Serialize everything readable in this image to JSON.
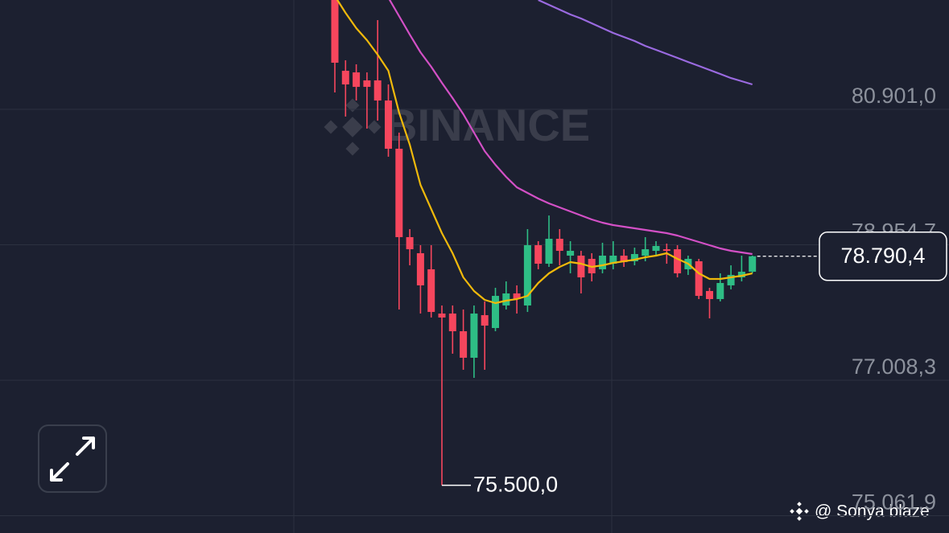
{
  "chart_data": {
    "type": "candlestick",
    "ylim": [
      74814,
      82472
    ],
    "yticks": [
      {
        "value": 80901.0,
        "label": "80.901,0"
      },
      {
        "value": 78954.7,
        "label": "78.954,7"
      },
      {
        "value": 77008.3,
        "label": "77.008,3"
      },
      {
        "value": 75061.9,
        "label": "75.061,9"
      }
    ],
    "grid": true,
    "up_color": "#2ebd85",
    "down_color": "#f6465d",
    "open": [
      82472,
      81455,
      81432,
      81317,
      81317,
      81028,
      80335,
      79065,
      78834,
      78603,
      77967,
      77967,
      77713,
      77332,
      77944,
      77759,
      78083,
      78256,
      78083,
      78949,
      78683,
      79041,
      78799,
      78799,
      78753,
      78603,
      78683,
      78799,
      78718,
      78799,
      78868,
      78891,
      78891,
      78603,
      78718,
      78291,
      78175,
      78372,
      78487,
      78568
    ],
    "high": [
      82703,
      81606,
      81548,
      81432,
      82183,
      81259,
      80566,
      79180,
      78949,
      78949,
      78083,
      78083,
      78025,
      78083,
      78141,
      78337,
      78429,
      78372,
      79180,
      79007,
      79376,
      79180,
      79007,
      78868,
      78834,
      78984,
      79007,
      78891,
      78914,
      79065,
      79007,
      78972,
      78949,
      78799,
      78753,
      78337,
      78545,
      78660,
      78799,
      78799
    ],
    "low": [
      81144,
      80797,
      81028,
      80624,
      80739,
      80220,
      78025,
      78660,
      77967,
      77910,
      75500,
      77390,
      77159,
      77043,
      77159,
      77713,
      78025,
      77967,
      77990,
      78603,
      78637,
      78660,
      78545,
      78256,
      78429,
      78545,
      78603,
      78637,
      78660,
      78718,
      78799,
      78683,
      78487,
      78522,
      78175,
      77898,
      78141,
      78314,
      78429,
      78545
    ],
    "close": [
      81571,
      81259,
      81224,
      81224,
      81028,
      80335,
      79065,
      78891,
      78372,
      77990,
      77910,
      77713,
      77332,
      77967,
      77794,
      78221,
      78256,
      78175,
      78949,
      78683,
      79041,
      78868,
      78868,
      78487,
      78545,
      78799,
      78799,
      78707,
      78822,
      78891,
      78938,
      78868,
      78545,
      78753,
      78221,
      78175,
      78406,
      78522,
      78568,
      78790.4
    ],
    "series": [
      {
        "color": "#f0b90b",
        "values": [
          82530,
          82287,
          82068,
          81894,
          81686,
          81455,
          80855,
          80393,
          79815,
          79469,
          79122,
          78834,
          78487,
          78291,
          78164,
          78117,
          78152,
          78175,
          78221,
          78406,
          78545,
          78637,
          78707,
          78683,
          78637,
          78660,
          78695,
          78718,
          78741,
          78776,
          78799,
          78834,
          78753,
          78683,
          78545,
          78464,
          78464,
          78487,
          78510,
          78545
        ]
      },
      {
        "color": "#d350c6",
        "values": [
          null,
          null,
          null,
          null,
          null,
          82506,
          82241,
          81975,
          81721,
          81513,
          81282,
          81063,
          80832,
          80566,
          80300,
          80104,
          79931,
          79781,
          79700,
          79619,
          79550,
          79492,
          79434,
          79376,
          79319,
          79272,
          79238,
          79215,
          79192,
          79169,
          79145,
          79122,
          79088,
          79041,
          78995,
          78949,
          78903,
          78868,
          78845,
          78822
        ]
      },
      {
        "color": "#9a6ae0",
        "values": [
          null,
          null,
          null,
          null,
          null,
          null,
          null,
          null,
          null,
          null,
          null,
          null,
          null,
          null,
          null,
          null,
          null,
          null,
          null,
          82472,
          82403,
          82333,
          82264,
          82206,
          82137,
          82068,
          81998,
          81941,
          81883,
          81813,
          81756,
          81698,
          81640,
          81582,
          81525,
          81467,
          81409,
          81351,
          81305,
          81259
        ]
      }
    ],
    "low_marker": {
      "value": 75500,
      "label": "75.500,0"
    },
    "last_price": {
      "value": 78790.4,
      "label": "78.790,4"
    },
    "watermark": "BINANCE",
    "credit": "@ Sonya blaze"
  }
}
